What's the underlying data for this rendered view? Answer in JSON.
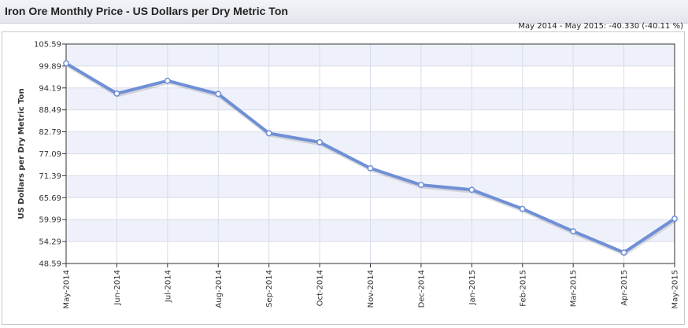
{
  "header": {
    "title": "Iron Ore Monthly Price - US Dollars per Dry Metric Ton",
    "change_text": "May 2014 - May 2015: -40.330 (-40.11 %)"
  },
  "colors": {
    "line": "#6f8fd6",
    "band": "#eef0fa",
    "grid": "#d9dcea",
    "axis": "#333333"
  },
  "chart_data": {
    "type": "line",
    "title": "Iron Ore Monthly Price - US Dollars per Dry Metric Ton",
    "ylabel": "US Dollars per Dry Metric Ton",
    "xlabel": "",
    "ylim": [
      48.59,
      105.59
    ],
    "yticks": [
      "105.59",
      "99.89",
      "94.19",
      "88.49",
      "82.79",
      "77.09",
      "71.39",
      "65.69",
      "59.99",
      "54.29",
      "48.59"
    ],
    "categories": [
      "May-2014",
      "Jun-2014",
      "Jul-2014",
      "Aug-2014",
      "Sep-2014",
      "Oct-2014",
      "Nov-2014",
      "Dec-2014",
      "Jan-2015",
      "Feb-2015",
      "Mar-2015",
      "Apr-2015",
      "May-2015"
    ],
    "values": [
      100.56,
      92.74,
      96.05,
      92.63,
      82.42,
      80.09,
      73.33,
      69.0,
      67.74,
      62.78,
      56.96,
      51.44,
      60.23
    ],
    "grid": true,
    "legend": "none"
  }
}
